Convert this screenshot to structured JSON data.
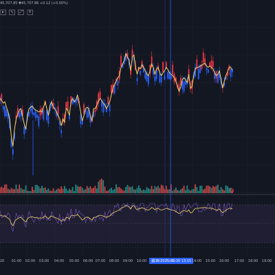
{
  "header": {
    "ohlc_text": "45,707.85  ▼45,707.86  +0.12 (+0.00%)"
  },
  "toolbar": {
    "items": [
      "cursor-icon",
      "trend-icon",
      "expand-icon",
      "close-icon"
    ]
  },
  "colors": {
    "background": "#131722",
    "up": "#f23645",
    "down": "#2962ff",
    "ma": "#f5d56e",
    "volume_up": "#26a69a",
    "volume_down": "#ef5350",
    "crosshair": "#2962ff",
    "oscillator_fill": "#2a2540"
  },
  "time_axis": {
    "ticks": [
      "20",
      "01:00",
      "02:00",
      "03:00",
      "04:00",
      "05:00",
      "06:00",
      "07:00",
      "08:00",
      "09:00",
      "10:00",
      "11:00",
      "12:00",
      "14:00",
      "15:00",
      "16:00",
      "17:00",
      "18:00",
      "19:00"
    ],
    "cursor_label": "週 四  2025-05-30  13:15"
  },
  "chart_data": {
    "type": "candlestick",
    "ma_line": [
      145,
      148,
      152,
      150,
      158,
      165,
      175,
      200,
      215,
      190,
      175,
      168,
      162,
      160,
      172,
      182,
      190,
      170,
      160,
      158,
      156,
      160,
      162,
      163,
      165,
      163,
      165,
      158,
      150,
      160,
      170,
      155,
      150,
      158,
      160,
      165,
      170,
      175,
      185,
      175,
      180,
      160,
      162,
      170,
      150,
      145,
      150,
      148,
      140,
      152,
      165,
      178,
      170,
      160,
      158,
      160,
      170,
      178,
      160,
      160,
      155,
      150,
      145,
      148,
      152,
      155,
      160,
      155,
      150,
      140,
      130,
      125,
      120,
      115,
      112,
      100,
      95,
      90,
      80,
      85,
      90,
      105,
      85,
      82,
      100,
      110,
      100,
      102,
      96,
      100,
      105,
      110,
      112,
      105,
      95,
      100,
      110,
      102,
      100,
      108,
      112,
      108,
      105,
      100,
      103,
      108,
      110,
      112,
      115,
      120,
      128,
      135,
      128,
      118,
      115,
      118,
      122,
      110,
      130,
      128,
      112,
      102,
      100,
      100,
      98,
      97,
      95,
      94,
      98,
      100,
      98,
      100,
      102,
      108,
      112,
      110,
      105,
      118,
      130,
      120,
      112,
      106,
      100,
      100,
      104
    ]
  }
}
